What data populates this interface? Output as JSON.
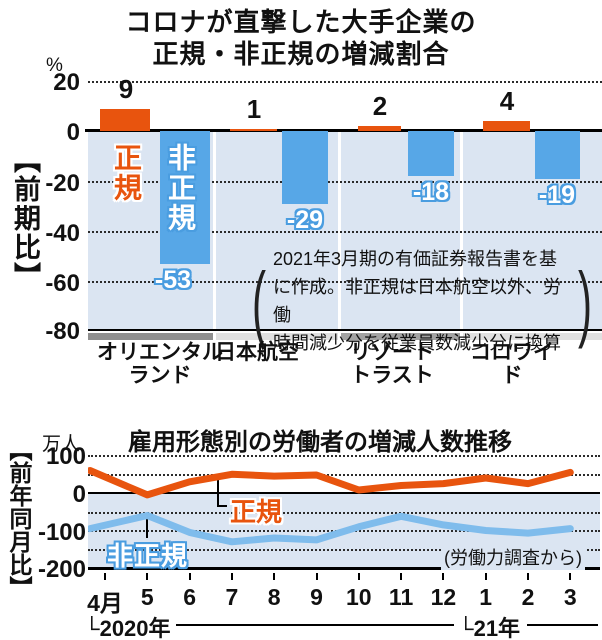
{
  "header": {
    "title_line1": "コロナが直撃した大手企業の",
    "title_line2": "正規・非正規の増減割合"
  },
  "colors": {
    "accent_orange": "#e8540e",
    "bar_blue": "#57a7e7",
    "line_blue": "#7fbcec",
    "plot_background_blue": "#dbe5f2",
    "label_outline_blue": "#4a9de0",
    "footer_gray_dark": "#8f8f8f",
    "footer_gray_mid": "#a2a2a2",
    "footer_gray_light": "#e0e0e0"
  },
  "chart_data": [
    {
      "type": "bar",
      "title": "コロナが直撃した大手企業の正規・非正規の増減割合",
      "unit": "%",
      "axis_label": "【前期比】",
      "categories": [
        "オリエンタルランド",
        "日本航空",
        "リゾートトラスト",
        "コロワイド"
      ],
      "category_lines": [
        [
          "オリエンタル",
          "ランド"
        ],
        [
          "日本航空"
        ],
        [
          "リゾート",
          "トラスト"
        ],
        [
          "コロワイド"
        ]
      ],
      "series": [
        {
          "name": "正規",
          "values": [
            9,
            1,
            2,
            4
          ]
        },
        {
          "name": "非正規",
          "values": [
            -53,
            -29,
            -18,
            -19
          ]
        }
      ],
      "y_ticks": [
        20,
        0,
        -20,
        -40,
        -60,
        -80
      ],
      "ylim": [
        -80,
        20
      ],
      "grid": "dotted at 20,-20,-40,-60",
      "note_lines": [
        "2021年3月期の有価証券報告書を基",
        "に作成。非正規は日本航空以外、労働",
        "時間減少分を従業員数減少分に換算"
      ]
    },
    {
      "type": "line",
      "title": "雇用形態別の労働者の増減人数推移",
      "unit": "万人",
      "axis_label": "【前年同月比】",
      "x": [
        "4月",
        "5",
        "6",
        "7",
        "8",
        "9",
        "10",
        "11",
        "12",
        "1",
        "2",
        "3"
      ],
      "era": [
        "└2020年",
        "└21年"
      ],
      "series": [
        {
          "name": "正規",
          "values": [
            60,
            -5,
            30,
            50,
            45,
            48,
            8,
            20,
            25,
            40,
            25,
            55
          ]
        },
        {
          "name": "非正規",
          "values": [
            -95,
            -60,
            -105,
            -130,
            -120,
            -125,
            -90,
            -62,
            -85,
            -100,
            -107,
            -95
          ]
        }
      ],
      "y_ticks": [
        100,
        0,
        -100,
        -200
      ],
      "ylim": [
        -200,
        100
      ],
      "grid": "dotted every 50",
      "source": "(労働力調査から)"
    }
  ]
}
